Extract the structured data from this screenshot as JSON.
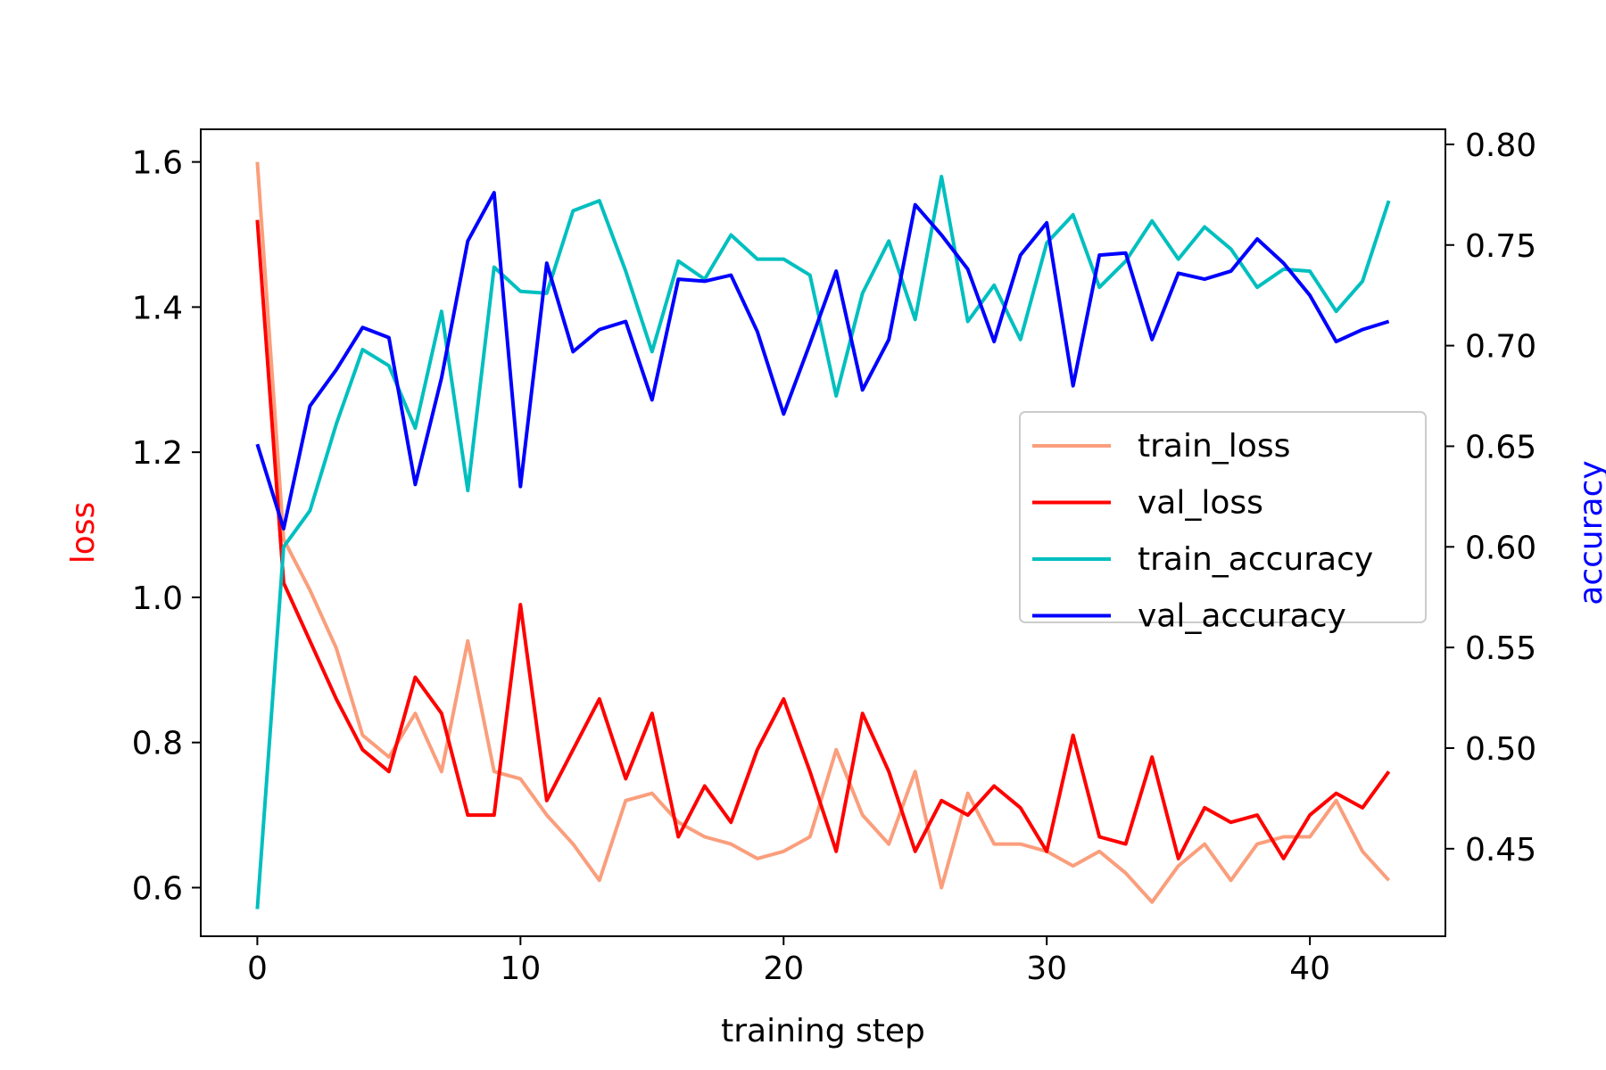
{
  "chart_data": {
    "type": "line",
    "xlabel": "training step",
    "ylabel_left": "loss",
    "ylabel_right": "accuracy",
    "xlim": [
      -2.15,
      45.15
    ],
    "ylim_left": [
      0.533,
      1.645
    ],
    "ylim_right": [
      0.4065,
      0.8075
    ],
    "xticks": [
      0,
      10,
      20,
      30,
      40
    ],
    "yticks_left": [
      0.6,
      0.8,
      1.0,
      1.2,
      1.4,
      1.6
    ],
    "yticks_left_labels": [
      "0.6",
      "0.8",
      "1.0",
      "1.2",
      "1.4",
      "1.6"
    ],
    "yticks_right": [
      0.45,
      0.5,
      0.55,
      0.6,
      0.65,
      0.7,
      0.75,
      0.8
    ],
    "yticks_right_labels": [
      "0.45",
      "0.50",
      "0.55",
      "0.60",
      "0.65",
      "0.70",
      "0.75",
      "0.80"
    ],
    "grid": false,
    "legend_position": "center-right",
    "colors": {
      "left_axis_label": "#ff0000",
      "right_axis_label": "#0000ff"
    },
    "series": [
      {
        "name": "train_loss",
        "axis": "left",
        "color": "#fa9e7c",
        "x": [
          0,
          1,
          2,
          3,
          4,
          5,
          6,
          7,
          8,
          9,
          10,
          11,
          12,
          13,
          14,
          15,
          16,
          17,
          18,
          19,
          20,
          21,
          22,
          23,
          24,
          25,
          26,
          27,
          28,
          29,
          30,
          31,
          32,
          33,
          34,
          35,
          36,
          37,
          38,
          39,
          40,
          41,
          42,
          43
        ],
        "values": [
          1.6,
          1.08,
          1.01,
          0.93,
          0.81,
          0.78,
          0.84,
          0.76,
          0.94,
          0.76,
          0.75,
          0.7,
          0.66,
          0.61,
          0.72,
          0.73,
          0.69,
          0.67,
          0.66,
          0.64,
          0.65,
          0.67,
          0.79,
          0.7,
          0.66,
          0.76,
          0.6,
          0.73,
          0.66,
          0.66,
          0.65,
          0.63,
          0.65,
          0.62,
          0.58,
          0.63,
          0.66,
          0.61,
          0.66,
          0.67,
          0.67,
          0.72,
          0.65,
          0.61
        ]
      },
      {
        "name": "val_loss",
        "axis": "left",
        "color": "#ff0000",
        "x": [
          0,
          1,
          2,
          3,
          4,
          5,
          6,
          7,
          8,
          9,
          10,
          11,
          12,
          13,
          14,
          15,
          16,
          17,
          18,
          19,
          20,
          21,
          22,
          23,
          24,
          25,
          26,
          27,
          28,
          29,
          30,
          31,
          32,
          33,
          34,
          35,
          36,
          37,
          38,
          39,
          40,
          41,
          42,
          43
        ],
        "values": [
          1.52,
          1.02,
          0.94,
          0.86,
          0.79,
          0.76,
          0.89,
          0.84,
          0.7,
          0.7,
          0.99,
          0.72,
          0.79,
          0.86,
          0.75,
          0.84,
          0.67,
          0.74,
          0.69,
          0.79,
          0.86,
          0.76,
          0.65,
          0.84,
          0.76,
          0.65,
          0.72,
          0.7,
          0.74,
          0.71,
          0.65,
          0.81,
          0.67,
          0.66,
          0.78,
          0.64,
          0.71,
          0.69,
          0.7,
          0.64,
          0.7,
          0.73,
          0.71,
          0.76
        ]
      },
      {
        "name": "train_accuracy",
        "axis": "right",
        "color": "#00bfbf",
        "x": [
          0,
          1,
          2,
          3,
          4,
          5,
          6,
          7,
          8,
          9,
          10,
          11,
          12,
          13,
          14,
          15,
          16,
          17,
          18,
          19,
          20,
          21,
          22,
          23,
          24,
          25,
          26,
          27,
          28,
          29,
          30,
          31,
          32,
          33,
          34,
          35,
          36,
          37,
          38,
          39,
          40,
          41,
          42,
          43
        ],
        "values": [
          0.42,
          0.6,
          0.618,
          0.661,
          0.698,
          0.69,
          0.659,
          0.717,
          0.628,
          0.739,
          0.727,
          0.726,
          0.767,
          0.772,
          0.737,
          0.697,
          0.742,
          0.733,
          0.755,
          0.743,
          0.743,
          0.735,
          0.675,
          0.726,
          0.752,
          0.713,
          0.784,
          0.712,
          0.73,
          0.703,
          0.751,
          0.765,
          0.729,
          0.742,
          0.762,
          0.743,
          0.759,
          0.748,
          0.729,
          0.738,
          0.737,
          0.717,
          0.732,
          0.772
        ]
      },
      {
        "name": "val_accuracy",
        "axis": "right",
        "color": "#0000ff",
        "x": [
          0,
          1,
          2,
          3,
          4,
          5,
          6,
          7,
          8,
          9,
          10,
          11,
          12,
          13,
          14,
          15,
          16,
          17,
          18,
          19,
          20,
          21,
          22,
          23,
          24,
          25,
          26,
          27,
          28,
          29,
          30,
          31,
          32,
          33,
          34,
          35,
          36,
          37,
          38,
          39,
          40,
          41,
          42,
          43
        ],
        "values": [
          0.651,
          0.609,
          0.67,
          0.688,
          0.709,
          0.704,
          0.631,
          0.684,
          0.752,
          0.776,
          0.63,
          0.741,
          0.697,
          0.708,
          0.712,
          0.673,
          0.733,
          0.732,
          0.735,
          0.707,
          0.666,
          0.701,
          0.737,
          0.678,
          0.703,
          0.77,
          0.755,
          0.738,
          0.702,
          0.745,
          0.761,
          0.68,
          0.745,
          0.746,
          0.703,
          0.736,
          0.733,
          0.737,
          0.753,
          0.741,
          0.725,
          0.702,
          0.708,
          0.712
        ]
      }
    ]
  }
}
